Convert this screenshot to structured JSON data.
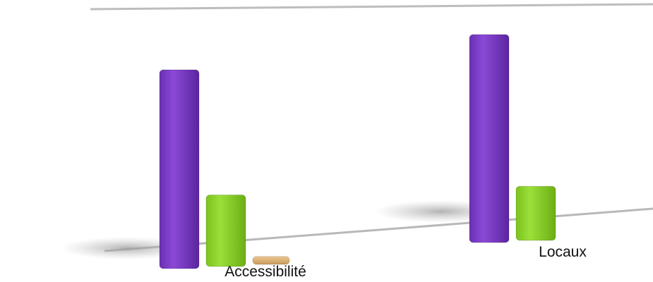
{
  "chart_data": {
    "type": "bar",
    "title": "",
    "xlabel": "",
    "ylabel": "",
    "categories": [
      "Accessibilité",
      "Locaux"
    ],
    "series": [
      {
        "values": [
          100,
          100
        ]
      },
      {
        "values": [
          36,
          26
        ]
      },
      {
        "values": [
          4,
          0
        ]
      }
    ],
    "ylim": [
      0,
      100
    ],
    "grid": false,
    "legend": "none",
    "colors": [
      "#7b3fc4",
      "#8fd42b",
      "#d9b27a"
    ]
  }
}
